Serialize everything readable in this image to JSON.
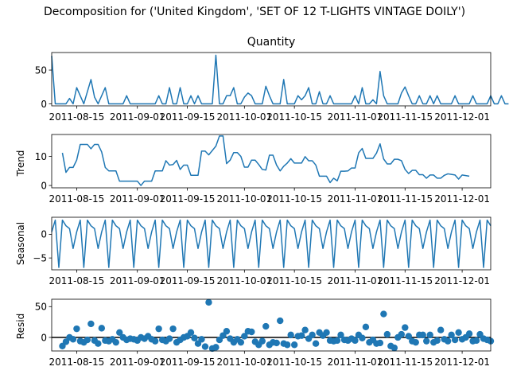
{
  "title": "Decomposition for ('United Kingdom', 'SET OF 12 T-LIGHTS VINTAGE DOILY')",
  "colors": {
    "line": "#1f77b4",
    "zero_line": "#000000",
    "text": "#000000"
  },
  "chart_data": [
    {
      "type": "line",
      "panel": "observed",
      "title": "Quantity",
      "ylabel": "",
      "ylim": [
        -3,
        76
      ],
      "yticks": [
        0,
        50
      ],
      "xtick_labels": [
        "2011-08-15",
        "2011-09-01",
        "2011-09-15",
        "2011-10-01",
        "2011-10-15",
        "2011-11-01",
        "2011-11-15",
        "2011-12-01"
      ],
      "xtick_dates": [
        "2011-08-15",
        "2011-09-01",
        "2011-09-15",
        "2011-10-01",
        "2011-10-15",
        "2011-11-01",
        "2011-11-15",
        "2011-12-01"
      ],
      "x_start": "2011-08-08",
      "x_end": "2011-12-09",
      "values": [
        71,
        0,
        0,
        0,
        0,
        8,
        0,
        24,
        12,
        0,
        18,
        36,
        10,
        0,
        12,
        24,
        0,
        0,
        0,
        0,
        0,
        12,
        0,
        0,
        0,
        0,
        0,
        0,
        0,
        0,
        12,
        0,
        0,
        24,
        0,
        0,
        24,
        0,
        0,
        12,
        0,
        12,
        0,
        0,
        0,
        0,
        72,
        0,
        0,
        12,
        12,
        24,
        0,
        0,
        10,
        16,
        12,
        0,
        0,
        0,
        26,
        12,
        0,
        0,
        0,
        36,
        0,
        0,
        0,
        12,
        6,
        12,
        24,
        0,
        0,
        18,
        0,
        0,
        12,
        0,
        0,
        0,
        0,
        0,
        0,
        12,
        0,
        24,
        0,
        0,
        6,
        0,
        48,
        12,
        0,
        0,
        0,
        0,
        16,
        25,
        12,
        0,
        0,
        12,
        0,
        0,
        12,
        0,
        12,
        0,
        0,
        0,
        0,
        12,
        0,
        0,
        0,
        0,
        12,
        0,
        0,
        0,
        0,
        12,
        0,
        0,
        12,
        0,
        0
      ]
    },
    {
      "type": "line",
      "panel": "trend",
      "title": "",
      "ylabel": "Trend",
      "ylim": [
        -0.8,
        17.5
      ],
      "yticks": [
        0,
        10
      ],
      "xtick_labels": [
        "2011-08-15",
        "2011-09-01",
        "2011-09-15",
        "2011-10-01",
        "2011-10-15",
        "2011-11-01",
        "2011-11-15",
        "2011-12-01"
      ],
      "xtick_dates": [
        "2011-08-15",
        "2011-09-01",
        "2011-09-15",
        "2011-10-01",
        "2011-10-15",
        "2011-11-01",
        "2011-11-15",
        "2011-12-01"
      ],
      "x_start": "2011-08-08",
      "x_end": "2011-12-09",
      "x_first_value": "2011-08-11",
      "values": [
        11.2,
        4.5,
        6.2,
        6.2,
        8.7,
        14.1,
        14.1,
        14.1,
        12.6,
        14.1,
        14.1,
        11.5,
        6.2,
        5.0,
        5.0,
        5.0,
        1.5,
        1.5,
        1.5,
        1.5,
        1.5,
        1.5,
        0.0,
        1.5,
        1.5,
        1.5,
        5.0,
        5.0,
        5.0,
        8.5,
        7.0,
        7.2,
        8.6,
        5.5,
        7.0,
        7.0,
        3.5,
        3.5,
        3.5,
        11.8,
        11.8,
        10.5,
        12.0,
        13.5,
        17.0,
        17.0,
        7.5,
        8.7,
        11.3,
        11.3,
        10.0,
        6.3,
        6.3,
        8.7,
        8.7,
        7.2,
        5.5,
        5.3,
        10.4,
        10.4,
        7.0,
        5.0,
        6.6,
        7.7,
        9.2,
        7.7,
        7.7,
        7.7,
        9.9,
        8.5,
        8.5,
        7.0,
        3.2,
        3.2,
        3.2,
        1.0,
        2.5,
        1.6,
        4.9,
        4.9,
        5.0,
        6.0,
        6.0,
        11.2,
        12.7,
        9.3,
        9.3,
        9.3,
        11.1,
        14.3,
        9.1,
        7.4,
        7.4,
        9.0,
        9.0,
        8.5,
        5.5,
        4.1,
        5.2,
        5.2,
        3.7,
        3.7,
        2.5,
        3.6,
        3.6,
        2.5,
        2.5,
        3.5,
        4.0,
        3.8,
        3.6,
        2.2,
        3.6,
        3.4,
        3.2
      ]
    },
    {
      "type": "line",
      "panel": "seasonal",
      "title": "",
      "ylabel": "Seasonal",
      "ylim": [
        -7.5,
        3.6
      ],
      "yticks": [
        -5,
        0
      ],
      "xtick_labels": [
        "2011-08-15",
        "2011-09-01",
        "2011-09-15",
        "2011-10-01",
        "2011-10-15",
        "2011-11-01",
        "2011-11-15",
        "2011-12-01"
      ],
      "xtick_dates": [
        "2011-08-15",
        "2011-09-01",
        "2011-09-15",
        "2011-10-01",
        "2011-10-15",
        "2011-11-01",
        "2011-11-15",
        "2011-12-01"
      ],
      "x_start": "2011-08-08",
      "x_end": "2011-12-09",
      "period_values": [
        0.5,
        3.0,
        -7.0,
        3.0,
        1.8,
        1.2,
        -3.0
      ]
    },
    {
      "type": "scatter",
      "panel": "residual",
      "title": "",
      "ylabel": "Resid",
      "ylim": [
        -22,
        62
      ],
      "yticks": [
        0,
        50
      ],
      "zero_line": 0,
      "xtick_labels": [
        "2011-08-15",
        "2011-09-01",
        "2011-09-15",
        "2011-10-01",
        "2011-10-15",
        "2011-11-01",
        "2011-11-15",
        "2011-12-01"
      ],
      "xtick_dates": [
        "2011-08-15",
        "2011-09-01",
        "2011-09-15",
        "2011-10-01",
        "2011-10-15",
        "2011-11-01",
        "2011-11-15",
        "2011-12-01"
      ],
      "x_start": "2011-08-08",
      "x_end": "2011-12-09",
      "x_first_value": "2011-08-11",
      "values": [
        -14,
        -7,
        0,
        -3,
        14,
        -6,
        -8,
        -4,
        22,
        -5,
        -10,
        15,
        -5,
        -6,
        -3,
        -8,
        8,
        0,
        -4,
        -2,
        -3,
        -5,
        0,
        -2,
        2,
        -3,
        -6,
        14,
        -4,
        -6,
        -2,
        14,
        -8,
        -4,
        0,
        2,
        8,
        -1,
        -10,
        -3,
        -15,
        57,
        -18,
        -16,
        -4,
        3,
        10,
        -2,
        -8,
        -3,
        -8,
        2,
        10,
        9,
        -7,
        -12,
        -6,
        18,
        -12,
        -8,
        -9,
        27,
        -10,
        -12,
        4,
        -12,
        2,
        3,
        12,
        -2,
        4,
        -10,
        8,
        3,
        8,
        -5,
        -6,
        -5,
        4,
        -4,
        -5,
        -2,
        -5,
        4,
        -1,
        17,
        -8,
        -4,
        -10,
        -9,
        38,
        5,
        -14,
        -17,
        0,
        5,
        16,
        2,
        -6,
        -8,
        4,
        4,
        -6,
        4,
        -8,
        -5,
        12,
        -3,
        -6,
        4,
        -4,
        8,
        -3,
        0,
        6,
        -6,
        -5,
        5,
        -2,
        -4,
        -6
      ]
    }
  ]
}
